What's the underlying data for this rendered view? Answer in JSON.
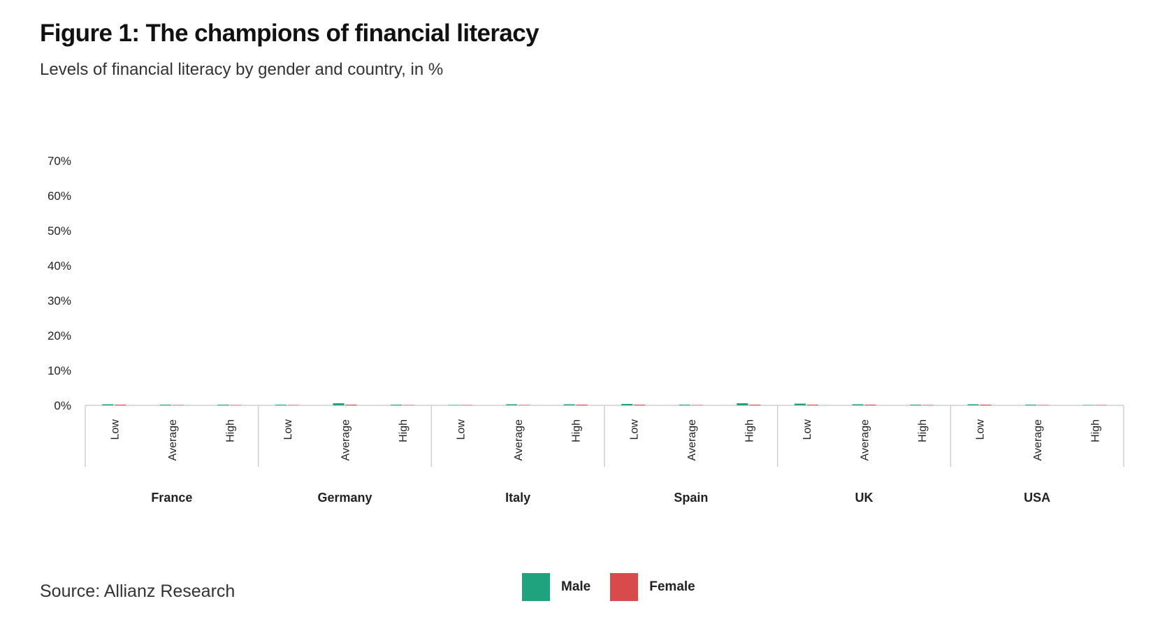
{
  "header": {
    "title": "Figure 1: The champions of financial literacy",
    "subtitle": "Levels of financial literacy by gender and country, in %"
  },
  "footer": {
    "source": "Source: Allianz Research"
  },
  "colors": {
    "male": "#1fa37e",
    "female": "#d84b4d",
    "axis": "#cfcfcf"
  },
  "chart_data": {
    "type": "bar",
    "title": "Figure 1: The champions of financial literacy",
    "subtitle": "Levels of financial literacy by gender and country, in %",
    "groups": [
      "France",
      "Germany",
      "Italy",
      "Spain",
      "UK",
      "USA"
    ],
    "levels": [
      "Low",
      "Average",
      "High"
    ],
    "y_ticks": [
      "0%",
      "10%",
      "20%",
      "30%",
      "40%",
      "50%",
      "60%",
      "70%"
    ],
    "ylim": [
      0,
      70
    ],
    "series": [
      {
        "name": "Male",
        "values": [
          [
            0.3,
            0.2,
            0.2
          ],
          [
            0.2,
            0.6,
            0.2
          ],
          [
            0.1,
            0.3,
            0.3
          ],
          [
            0.4,
            0.2,
            0.6
          ],
          [
            0.5,
            0.3,
            0.2
          ],
          [
            0.3,
            0.2,
            0.1
          ]
        ]
      },
      {
        "name": "Female",
        "values": [
          [
            0.2,
            0.1,
            0.1
          ],
          [
            0.1,
            0.2,
            0.1
          ],
          [
            0.1,
            0.1,
            0.2
          ],
          [
            0.2,
            0.1,
            0.2
          ],
          [
            0.2,
            0.2,
            0.1
          ],
          [
            0.2,
            0.1,
            0.1
          ]
        ]
      }
    ],
    "legend": {
      "position": "bottom-center",
      "entries": [
        "Male",
        "Female"
      ]
    },
    "grid": false
  }
}
